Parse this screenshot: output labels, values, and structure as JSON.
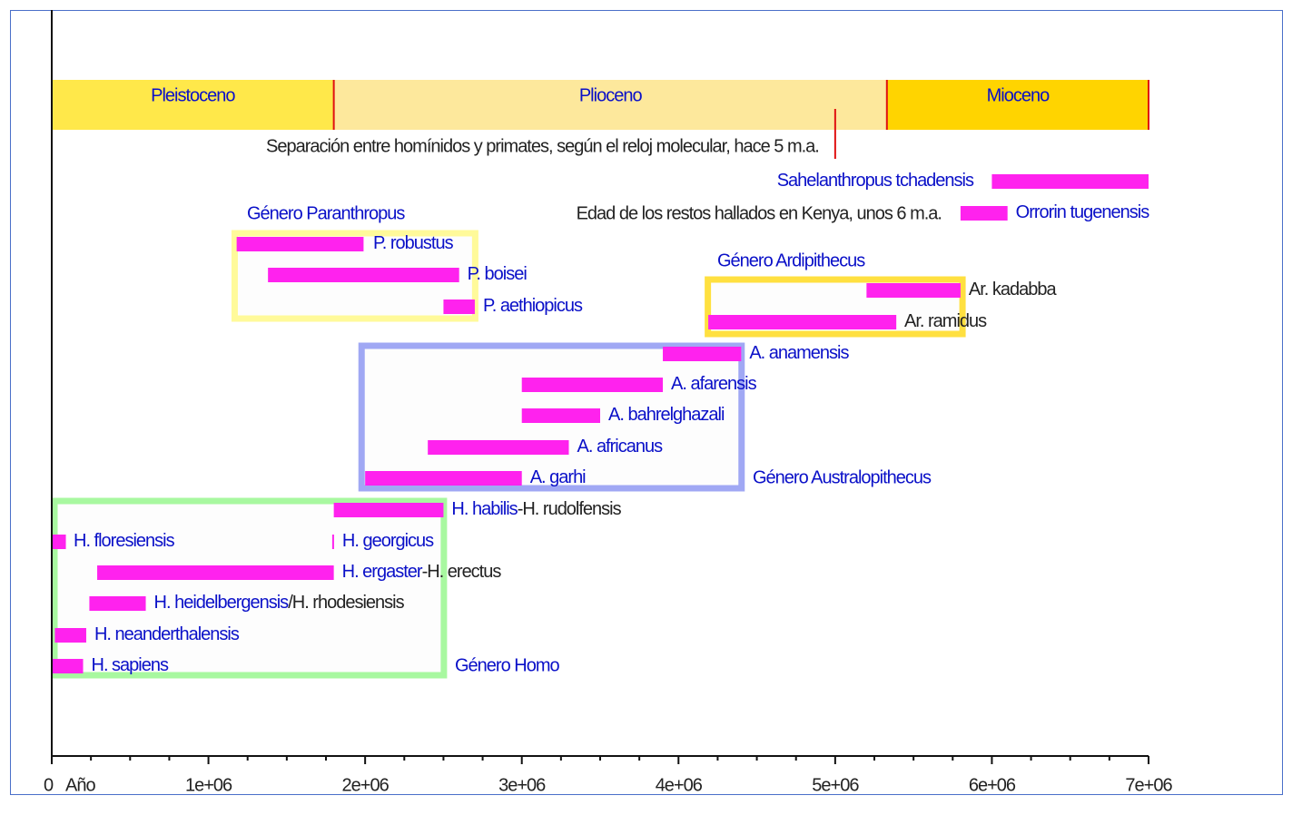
{
  "chart_data": {
    "type": "timeline-bar",
    "title": "",
    "xlabel": "Año",
    "xlim": [
      0,
      7000000
    ],
    "x_ticks": [
      0,
      1000000,
      2000000,
      3000000,
      4000000,
      5000000,
      6000000,
      7000000
    ],
    "x_tick_labels": [
      "0",
      "1e+06",
      "2e+06",
      "3e+06",
      "4e+06",
      "5e+06",
      "6e+06",
      "7e+06"
    ],
    "colors": {
      "bar": "#ff22ee",
      "blue_text": "#0a10c8",
      "black_text": "#222222",
      "red_line": "#e01010"
    },
    "epochs": [
      {
        "name": "Pleistoceno",
        "start": 0,
        "end": 1800000,
        "color": "#ffe84a"
      },
      {
        "name": "Plioceno",
        "start": 1800000,
        "end": 5330000,
        "color": "#fde89c"
      },
      {
        "name": "Mioceno",
        "start": 5330000,
        "end": 7000000,
        "color": "#ffd400"
      }
    ],
    "annotations": {
      "molecular_clock": {
        "text": "Separación entre homínidos y primates, según el reloj molecular, hace 5 m.a.",
        "x": 5000000
      },
      "kenya": {
        "text": "Edad de los restos hallados en Kenya, unos 6 m.a."
      }
    },
    "groups": [
      {
        "name": "Género Paranthropus",
        "start": 1150000,
        "end": 2720000,
        "color": "#fffa9a"
      },
      {
        "name": "Género Ardipithecus",
        "start": 4170000,
        "end": 5830000,
        "color": "#ffe040"
      },
      {
        "name": "Género Australopithecus",
        "start": 1960000,
        "end": 4420000,
        "color": "#a0a8f4"
      },
      {
        "name": "Género Homo",
        "start": 0,
        "end": 2520000,
        "color": "#a8f8a0"
      }
    ],
    "series": [
      {
        "name": "Sahelanthropus tchadensis",
        "start": 6000000,
        "end": 7000000,
        "label": [
          {
            "text": "Sahelanthropus tchadensis",
            "c": "blue"
          }
        ]
      },
      {
        "name": "Orrorin tugenensis",
        "start": 5800000,
        "end": 6100000,
        "label": [
          {
            "text": "Orrorin tugenensis",
            "c": "blue"
          }
        ]
      },
      {
        "name": "P. robustus",
        "start": 1180000,
        "end": 1990000,
        "label": [
          {
            "text": "P. robustus",
            "c": "blue"
          }
        ]
      },
      {
        "name": "P. boisei",
        "start": 1380000,
        "end": 2600000,
        "label": [
          {
            "text": "P. boisei",
            "c": "blue"
          }
        ]
      },
      {
        "name": "P. aethiopicus",
        "start": 2500000,
        "end": 2700000,
        "label": [
          {
            "text": "P. aethiopicus",
            "c": "blue"
          }
        ]
      },
      {
        "name": "Ar. kadabba",
        "start": 5200000,
        "end": 5800000,
        "label": [
          {
            "text": "Ar. kadabba",
            "c": "black"
          }
        ]
      },
      {
        "name": "Ar. ramidus",
        "start": 4190000,
        "end": 5390000,
        "label": [
          {
            "text": "Ar. ramidus",
            "c": "black"
          }
        ]
      },
      {
        "name": "A. anamensis",
        "start": 3900000,
        "end": 4400000,
        "label": [
          {
            "text": "A. anamensis",
            "c": "blue"
          }
        ]
      },
      {
        "name": "A. afarensis",
        "start": 3000000,
        "end": 3900000,
        "label": [
          {
            "text": "A. afarensis",
            "c": "blue"
          }
        ]
      },
      {
        "name": "A. bahrelghazali",
        "start": 3000000,
        "end": 3500000,
        "label": [
          {
            "text": "A. bahrelghazali",
            "c": "blue"
          }
        ]
      },
      {
        "name": "A. africanus",
        "start": 2400000,
        "end": 3300000,
        "label": [
          {
            "text": "A. africanus",
            "c": "blue"
          }
        ]
      },
      {
        "name": "A. garhi",
        "start": 2000000,
        "end": 3000000,
        "label": [
          {
            "text": "A. garhi",
            "c": "blue"
          }
        ]
      },
      {
        "name": "H. habilis-H. rudolfensis",
        "start": 1800000,
        "end": 2500000,
        "label": [
          {
            "text": "H. habilis",
            "c": "blue"
          },
          {
            "text": "-H. rudolfensis",
            "c": "black"
          }
        ]
      },
      {
        "name": "H. floresiensis",
        "start": 0,
        "end": 90000,
        "label": [
          {
            "text": "H. floresiensis",
            "c": "blue"
          }
        ]
      },
      {
        "name": "H. georgicus",
        "start": 1790000,
        "end": 1800000,
        "label": [
          {
            "text": "H. georgicus",
            "c": "blue"
          }
        ]
      },
      {
        "name": "H. ergaster-H. erectus",
        "start": 290000,
        "end": 1800000,
        "label": [
          {
            "text": "H. ergaster",
            "c": "blue"
          },
          {
            "text": "-H. erectus",
            "c": "black"
          }
        ]
      },
      {
        "name": "H. heidelbergensis/H. rhodesiensis",
        "start": 240000,
        "end": 600000,
        "label": [
          {
            "text": "H. heidelbergensis",
            "c": "blue"
          },
          {
            "text": "/H. rhodesiensis",
            "c": "black"
          }
        ]
      },
      {
        "name": "H. neanderthalensis",
        "start": 20000,
        "end": 220000,
        "label": [
          {
            "text": "H. neanderthalensis",
            "c": "blue"
          }
        ]
      },
      {
        "name": "H. sapiens",
        "start": 0,
        "end": 200000,
        "label": [
          {
            "text": "H. sapiens",
            "c": "blue"
          }
        ]
      }
    ]
  }
}
